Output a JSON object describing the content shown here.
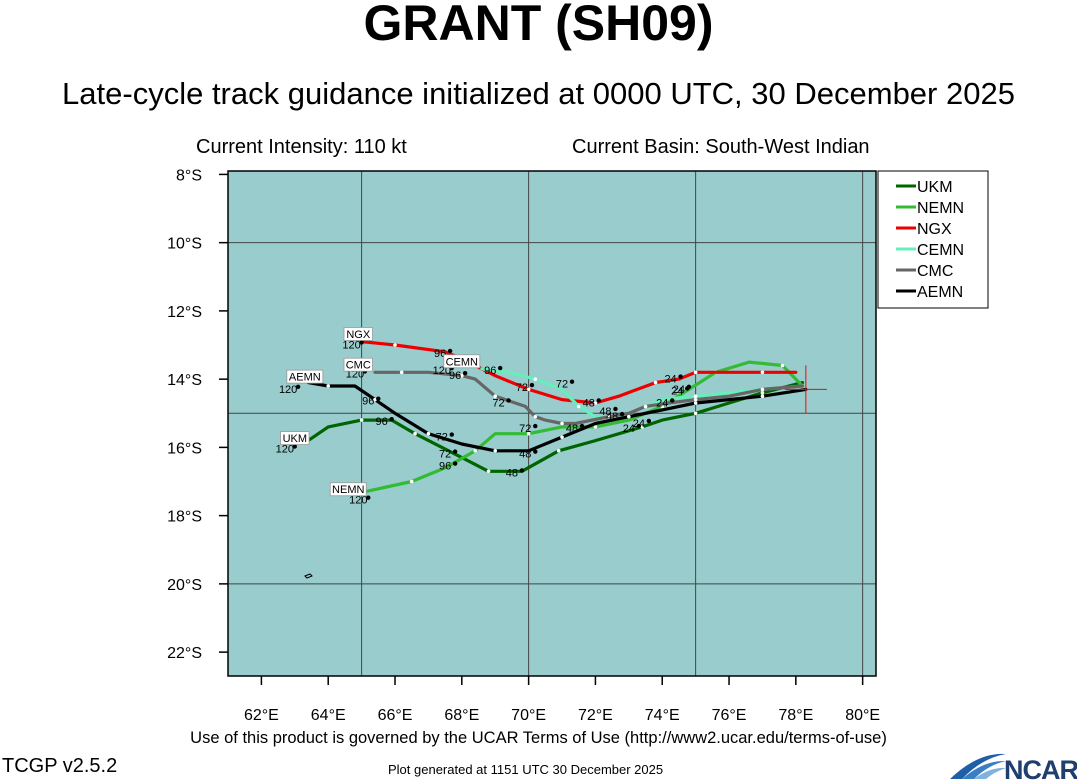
{
  "header": {
    "title": "GRANT (SH09)",
    "subtitle": "Late-cycle track guidance initialized at 0000 UTC, 30 December 2025",
    "intensity": "Current Intensity: 110 kt",
    "basin": "Current Basin: South-West Indian"
  },
  "footer": {
    "terms": "Use of this product is governed by the UCAR Terms of Use (http://www2.ucar.edu/terms-of-use)",
    "version": "TCGP v2.5.2",
    "generated": "Plot generated at 1151 UTC   30 December 2025",
    "logo_text": "NCAR"
  },
  "colors": {
    "ocean": "#99cccc",
    "grid": "#444444",
    "land": "#000000"
  },
  "chart_data": {
    "type": "line",
    "xlim": [
      61,
      80.4
    ],
    "ylim": [
      -22.7,
      -7.9
    ],
    "x_ticks": [
      62,
      64,
      66,
      68,
      70,
      72,
      74,
      76,
      78,
      80
    ],
    "x_tick_labels": [
      "62°E",
      "64°E",
      "66°E",
      "68°E",
      "70°E",
      "72°E",
      "74°E",
      "76°E",
      "78°E",
      "80°E"
    ],
    "y_ticks": [
      -8,
      -10,
      -12,
      -14,
      -16,
      -18,
      -20,
      -22
    ],
    "y_tick_labels": [
      "8°S",
      "10°S",
      "12°S",
      "14°S",
      "16°S",
      "18°S",
      "20°S",
      "22°S"
    ],
    "grid_lon": [
      65,
      70,
      75,
      80
    ],
    "grid_lat": [
      -10,
      -15,
      -20
    ],
    "legend_position": "top-right",
    "current_position": {
      "lon": 78.3,
      "lat": -14.3
    },
    "series": [
      {
        "name": "UKM",
        "color": "#006400",
        "points": [
          [
            78.2,
            -14.1
          ],
          [
            77.0,
            -14.4
          ],
          [
            76.0,
            -14.7
          ],
          [
            75.0,
            -15.0
          ],
          [
            74.0,
            -15.2
          ],
          [
            73.4,
            -15.4
          ],
          [
            72.0,
            -15.8
          ],
          [
            70.9,
            -16.1
          ],
          [
            69.8,
            -16.7
          ],
          [
            68.8,
            -16.7
          ],
          [
            68.0,
            -16.3
          ],
          [
            66.6,
            -15.6
          ],
          [
            65.9,
            -15.2
          ],
          [
            65.0,
            -15.2
          ],
          [
            64.0,
            -15.4
          ],
          [
            63.4,
            -15.8
          ]
        ],
        "labels": [
          {
            "text": "24",
            "lon": 73.0,
            "lat": -15.55
          },
          {
            "text": "48",
            "lon": 69.5,
            "lat": -16.85
          },
          {
            "text": "72",
            "lon": 67.5,
            "lat": -16.3
          },
          {
            "text": "96",
            "lon": 65.6,
            "lat": -15.35
          },
          {
            "text": "120",
            "lon": 62.7,
            "lat": -16.15
          }
        ],
        "tag": {
          "text": "UKM",
          "lon": 63.0,
          "lat": -15.8
        }
      },
      {
        "name": "NEMN",
        "color": "#33bb33",
        "points": [
          [
            78.2,
            -14.2
          ],
          [
            77.6,
            -13.6
          ],
          [
            76.6,
            -13.5
          ],
          [
            75.6,
            -13.8
          ],
          [
            74.8,
            -14.3
          ],
          [
            74.0,
            -14.8
          ],
          [
            73.0,
            -15.2
          ],
          [
            72.0,
            -15.4
          ],
          [
            71.0,
            -15.4
          ],
          [
            70.0,
            -15.6
          ],
          [
            69.0,
            -15.6
          ],
          [
            68.4,
            -16.1
          ],
          [
            67.5,
            -16.6
          ],
          [
            66.5,
            -17.0
          ],
          [
            65.1,
            -17.3
          ]
        ],
        "labels": [
          {
            "text": "24",
            "lon": 74.45,
            "lat": -14.45
          },
          {
            "text": "48",
            "lon": 71.3,
            "lat": -15.55
          },
          {
            "text": "72",
            "lon": 69.9,
            "lat": -15.55
          },
          {
            "text": "96",
            "lon": 67.5,
            "lat": -16.65
          },
          {
            "text": "120",
            "lon": 64.9,
            "lat": -17.65
          }
        ],
        "tag": {
          "text": "NEMN",
          "lon": 64.6,
          "lat": -17.3
        }
      },
      {
        "name": "NGX",
        "color": "#ee0000",
        "points": [
          [
            78.0,
            -13.8
          ],
          [
            77.0,
            -13.8
          ],
          [
            76.0,
            -13.8
          ],
          [
            75.0,
            -13.8
          ],
          [
            74.5,
            -14.0
          ],
          [
            73.8,
            -14.1
          ],
          [
            72.7,
            -14.5
          ],
          [
            72.0,
            -14.7
          ],
          [
            71.0,
            -14.6
          ],
          [
            70.0,
            -14.3
          ],
          [
            69.0,
            -13.9
          ],
          [
            68.0,
            -13.4
          ],
          [
            67.5,
            -13.2
          ],
          [
            66.0,
            -13.0
          ],
          [
            65.0,
            -12.9
          ]
        ],
        "labels": [
          {
            "text": "24",
            "lon": 74.25,
            "lat": -14.1
          },
          {
            "text": "48",
            "lon": 71.8,
            "lat": -14.8
          },
          {
            "text": "72",
            "lon": 69.8,
            "lat": -14.35
          },
          {
            "text": "96",
            "lon": 67.35,
            "lat": -13.35
          },
          {
            "text": "120",
            "lon": 64.7,
            "lat": -13.1
          }
        ],
        "tag": {
          "text": "NGX",
          "lon": 64.9,
          "lat": -12.75
        }
      },
      {
        "name": "CEMN",
        "color": "#66eebb",
        "points": [
          [
            78.2,
            -14.2
          ],
          [
            77.0,
            -14.3
          ],
          [
            76.0,
            -14.4
          ],
          [
            75.0,
            -14.5
          ],
          [
            74.0,
            -14.6
          ],
          [
            73.5,
            -14.8
          ],
          [
            73.0,
            -15.0
          ],
          [
            72.5,
            -15.1
          ],
          [
            72.0,
            -15.1
          ],
          [
            71.5,
            -14.8
          ],
          [
            71.0,
            -14.3
          ],
          [
            70.2,
            -14.0
          ],
          [
            69.4,
            -13.8
          ],
          [
            68.6,
            -13.7
          ]
        ],
        "labels": [
          {
            "text": "24",
            "lon": 74.5,
            "lat": -14.4
          },
          {
            "text": "48",
            "lon": 72.5,
            "lat": -15.2
          },
          {
            "text": "72",
            "lon": 71.0,
            "lat": -14.25
          },
          {
            "text": "96",
            "lon": 68.85,
            "lat": -13.85
          },
          {
            "text": "120",
            "lon": 67.4,
            "lat": -13.85
          }
        ],
        "tag": {
          "text": "CEMN",
          "lon": 68.0,
          "lat": -13.55
        }
      },
      {
        "name": "CMC",
        "color": "#666666",
        "points": [
          [
            78.2,
            -14.2
          ],
          [
            77.0,
            -14.3
          ],
          [
            76.0,
            -14.5
          ],
          [
            75.0,
            -14.6
          ],
          [
            74.2,
            -14.7
          ],
          [
            73.5,
            -14.8
          ],
          [
            73.0,
            -15.0
          ],
          [
            72.4,
            -15.1
          ],
          [
            71.4,
            -15.3
          ],
          [
            71.0,
            -15.3
          ],
          [
            70.5,
            -15.2
          ],
          [
            70.2,
            -15.1
          ],
          [
            69.9,
            -14.8
          ],
          [
            69.0,
            -14.5
          ],
          [
            68.4,
            -14.0
          ],
          [
            68.0,
            -13.9
          ],
          [
            67.0,
            -13.8
          ],
          [
            66.2,
            -13.8
          ],
          [
            65.4,
            -13.8
          ]
        ],
        "labels": [
          {
            "text": "24",
            "lon": 74.0,
            "lat": -14.8
          },
          {
            "text": "48",
            "lon": 72.3,
            "lat": -15.05
          },
          {
            "text": "72",
            "lon": 69.1,
            "lat": -14.8
          },
          {
            "text": "96",
            "lon": 67.8,
            "lat": -14.0
          },
          {
            "text": "120",
            "lon": 64.8,
            "lat": -13.95
          }
        ],
        "tag": {
          "text": "CMC",
          "lon": 64.9,
          "lat": -13.65
        }
      },
      {
        "name": "AEMN",
        "color": "#000000",
        "points": [
          [
            78.3,
            -14.3
          ],
          [
            77.0,
            -14.5
          ],
          [
            76.0,
            -14.6
          ],
          [
            75.0,
            -14.7
          ],
          [
            74.0,
            -14.9
          ],
          [
            73.0,
            -15.1
          ],
          [
            72.0,
            -15.3
          ],
          [
            71.0,
            -15.7
          ],
          [
            70.0,
            -16.1
          ],
          [
            69.0,
            -16.1
          ],
          [
            68.0,
            -15.9
          ],
          [
            67.0,
            -15.6
          ],
          [
            66.0,
            -15.0
          ],
          [
            65.4,
            -14.6
          ],
          [
            64.8,
            -14.2
          ],
          [
            64.0,
            -14.2
          ],
          [
            63.4,
            -14.1
          ]
        ],
        "labels": [
          {
            "text": "24",
            "lon": 73.3,
            "lat": -15.4
          },
          {
            "text": "48",
            "lon": 69.9,
            "lat": -16.3
          },
          {
            "text": "72",
            "lon": 67.4,
            "lat": -15.8
          },
          {
            "text": "96",
            "lon": 65.2,
            "lat": -14.75
          },
          {
            "text": "120",
            "lon": 62.8,
            "lat": -14.4
          }
        ],
        "tag": {
          "text": "AEMN",
          "lon": 63.3,
          "lat": -14.0
        }
      }
    ]
  }
}
